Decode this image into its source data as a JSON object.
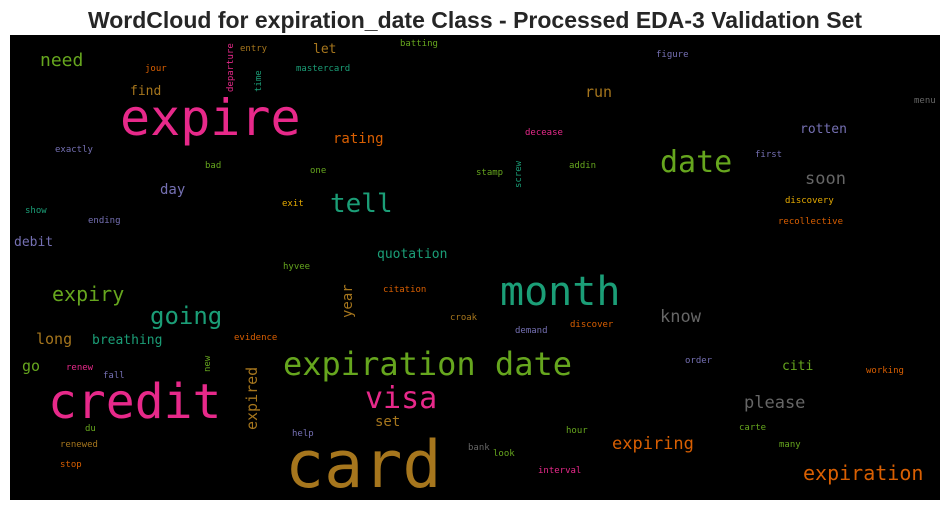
{
  "chart_data": {
    "type": "wordcloud",
    "title": "WordCloud for expiration_date Class - Processed EDA-3 Validation Set",
    "words": [
      "expire",
      "card",
      "credit",
      "month",
      "expiration date",
      "date",
      "visa",
      "tell",
      "going",
      "expiry",
      "expiration",
      "expiring",
      "please",
      "know",
      "soon",
      "need",
      "run",
      "rotten",
      "rating",
      "let",
      "find",
      "day",
      "debit",
      "long",
      "breathing",
      "quotation",
      "year",
      "expired",
      "set",
      "citi",
      "go",
      "departure",
      "time",
      "screw",
      "entry",
      "batting",
      "mastercard",
      "jour",
      "figure",
      "menu",
      "exactly",
      "decease",
      "bad",
      "one",
      "stamp",
      "addin",
      "first",
      "show",
      "ending",
      "exit",
      "discovery",
      "recollective",
      "hyvee",
      "citation",
      "croak",
      "demand",
      "discover",
      "evidence",
      "new",
      "renew",
      "fall",
      "order",
      "working",
      "du",
      "help",
      "hour",
      "carte",
      "bank",
      "look",
      "many",
      "renewed",
      "stop",
      "interval"
    ],
    "values": [
      50,
      65,
      48,
      40,
      32,
      30,
      30,
      26,
      24,
      20,
      20,
      17,
      17,
      17,
      17,
      18,
      15,
      13,
      14,
      13,
      13,
      14,
      13,
      15,
      13,
      13,
      14,
      15,
      14,
      13,
      15,
      9,
      9,
      9,
      9,
      9,
      9,
      9,
      9,
      9,
      9,
      9,
      9,
      9,
      9,
      9,
      9,
      9,
      9,
      9,
      9,
      9,
      9,
      9,
      9,
      9,
      9,
      9,
      9,
      9,
      9,
      9,
      9,
      9,
      9,
      9,
      9,
      9,
      9,
      9,
      9,
      9,
      9
    ],
    "colors": [
      "#e7298a",
      "#a6761d",
      "#e7298a",
      "#1b9e77",
      "#66a61e",
      "#66a61e",
      "#e7298a",
      "#1b9e77",
      "#1b9e77",
      "#66a61e",
      "#d95f02",
      "#d95f02",
      "#666666",
      "#666666",
      "#666666",
      "#66a61e",
      "#a6761d",
      "#7570b3",
      "#d95f02",
      "#a6761d",
      "#a6761d",
      "#7570b3",
      "#7570b3",
      "#a6761d",
      "#1b9e77",
      "#1b9e77",
      "#a6761d",
      "#a6761d",
      "#a6761d",
      "#66a61e",
      "#66a61e",
      "#e7298a",
      "#1b9e77",
      "#1b9e77",
      "#a6761d",
      "#66a61e",
      "#1b9e77",
      "#d95f02",
      "#7570b3",
      "#666666",
      "#7570b3",
      "#e7298a",
      "#66a61e",
      "#66a61e",
      "#66a61e",
      "#66a61e",
      "#7570b3",
      "#1b9e77",
      "#7570b3",
      "#e6ab02",
      "#e6ab02",
      "#d95f02",
      "#66a61e",
      "#d95f02",
      "#a6761d",
      "#7570b3",
      "#d95f02",
      "#d95f02",
      "#66a61e",
      "#e7298a",
      "#7570b3",
      "#7570b3",
      "#d95f02",
      "#66a61e",
      "#7570b3",
      "#66a61e",
      "#66a61e",
      "#666666",
      "#66a61e",
      "#66a61e",
      "#a6761d",
      "#d95f02",
      "#e7298a"
    ]
  }
}
